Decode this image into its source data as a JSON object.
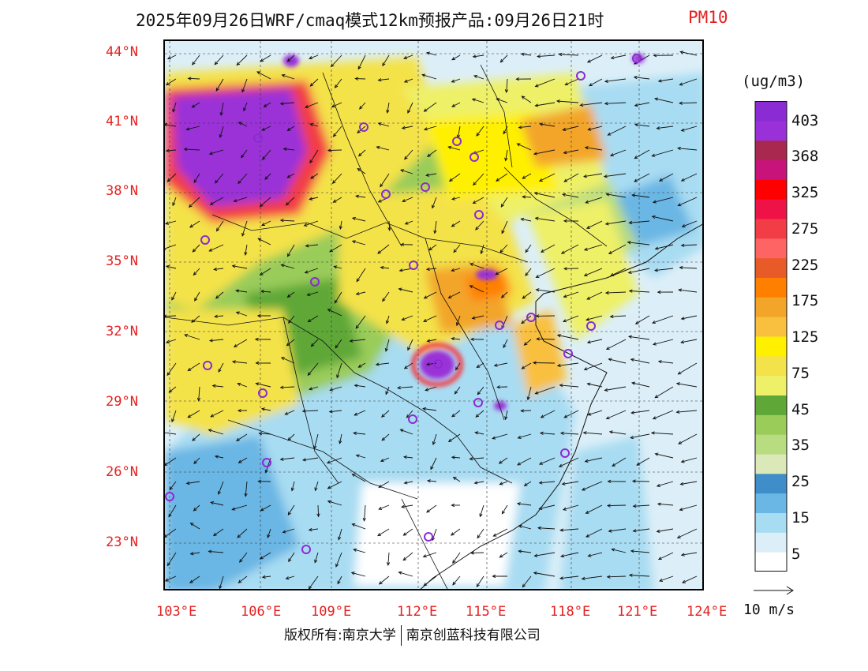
{
  "title": {
    "main": "2025年09月26日WRF/cmaq模式12km预报产品:09月26日21时",
    "variable": "PM10"
  },
  "map": {
    "lat_labels": [
      "44°N",
      "41°N",
      "38°N",
      "35°N",
      "32°N",
      "29°N",
      "26°N",
      "23°N"
    ],
    "lon_labels": [
      "103°E",
      "106°E",
      "109°E",
      "112°E",
      "115°E",
      "118°E",
      "121°E",
      "124°E"
    ],
    "lat_range": [
      21,
      44.5
    ],
    "lon_range": [
      102.8,
      124
    ]
  },
  "legend": {
    "unit": "(ug/m3)",
    "labels": [
      "403",
      "368",
      "325",
      "275",
      "225",
      "175",
      "125",
      "75",
      "45",
      "35",
      "25",
      "15",
      "5"
    ],
    "colors": [
      "#ffffff",
      "#dceff8",
      "#a8dcf2",
      "#6ab6e4",
      "#3f8ec9",
      "#dbe8b8",
      "#b8dc80",
      "#9acc5a",
      "#5fa838",
      "#eef068",
      "#f4e24a",
      "#fff000",
      "#f9c040",
      "#f3a52a",
      "#ff8000",
      "#e85a28",
      "#ff6464",
      "#f23c46",
      "#ee1246",
      "#ff0000",
      "#c8147a",
      "#a82850",
      "#9a30d8",
      "#8a2bd4"
    ],
    "wind_vector_label": "10 m/s"
  },
  "copyright": {
    "left": "版权所有:南京大学",
    "right": "南京创蓝科技有限公司"
  }
}
